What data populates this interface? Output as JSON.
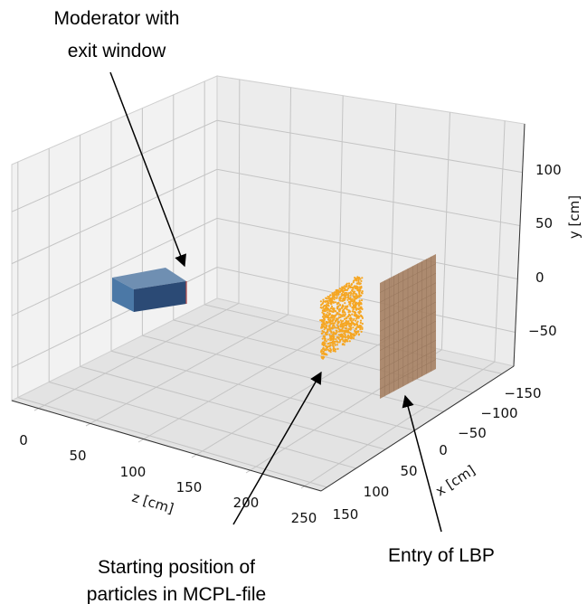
{
  "chart_data": {
    "type": "scatter",
    "projection": "3d",
    "grid": true,
    "axes": {
      "z": {
        "label": "z [cm]",
        "ticks": [
          "0",
          "50",
          "100",
          "150",
          "200",
          "250"
        ]
      },
      "x": {
        "label": "x [cm]",
        "ticks": [
          "−150",
          "−100",
          "−50",
          "0",
          "50",
          "100",
          "150"
        ]
      },
      "y": {
        "label": "y [cm]",
        "ticks": [
          "100",
          "50",
          "0",
          "−50"
        ]
      }
    },
    "objects": [
      {
        "name": "moderator",
        "kind": "box",
        "color": "#2e5d8a"
      },
      {
        "name": "particles",
        "kind": "points",
        "color": "#f5a623"
      },
      {
        "name": "lbp_entry",
        "kind": "plane",
        "color": "#a0785a"
      }
    ],
    "annotations": [
      {
        "lines": [
          "Moderator with",
          "exit window"
        ]
      },
      {
        "lines": [
          "Starting position of",
          "particles in MCPL-file"
        ]
      },
      {
        "lines": [
          "Entry of LBP"
        ]
      }
    ]
  }
}
